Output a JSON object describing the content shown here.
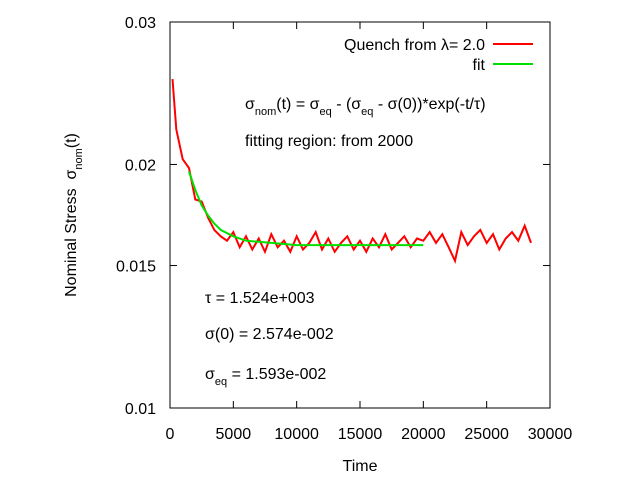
{
  "chart_data": {
    "type": "line",
    "xlabel": "Time",
    "ylabel": [
      {
        "text": "Nominal Stress  σ"
      },
      {
        "text": "nom",
        "sub": true
      },
      {
        "text": "(t)"
      }
    ],
    "xlim": [
      0,
      30000
    ],
    "xticks": [
      0,
      5000,
      10000,
      15000,
      20000,
      25000,
      30000
    ],
    "ylim": [
      0.01,
      0.03
    ],
    "yticks": [
      0.01,
      0.015,
      0.02,
      0.03
    ],
    "ylog": true,
    "legend": "top right",
    "series": [
      {
        "name": "Quench from λ= 2.0",
        "color": "#ff0000",
        "x": [
          200,
          500,
          1000,
          1500,
          2000,
          2500,
          3000,
          3500,
          4000,
          4500,
          5000,
          5500,
          6000,
          6500,
          7000,
          7500,
          8000,
          8500,
          9000,
          9500,
          10000,
          10500,
          11000,
          11500,
          12000,
          12500,
          13000,
          13500,
          14000,
          14500,
          15000,
          15500,
          16000,
          16500,
          17000,
          17500,
          18000,
          18500,
          19000,
          19500,
          20000,
          20500,
          21000,
          21500,
          22000,
          22500,
          23000,
          23500,
          24000,
          24500,
          25000,
          25500,
          26000,
          26500,
          27000,
          27500,
          28000,
          28500
        ],
        "values": [
          0.0255,
          0.0221,
          0.0203,
          0.0198,
          0.0181,
          0.018,
          0.0172,
          0.0166,
          0.0163,
          0.0161,
          0.0165,
          0.0158,
          0.0163,
          0.0157,
          0.0162,
          0.0156,
          0.0164,
          0.0158,
          0.0161,
          0.0156,
          0.0163,
          0.0157,
          0.016,
          0.0165,
          0.0157,
          0.0162,
          0.0156,
          0.016,
          0.0163,
          0.0157,
          0.0161,
          0.0156,
          0.0162,
          0.0158,
          0.0164,
          0.0157,
          0.016,
          0.0163,
          0.0158,
          0.0162,
          0.0161,
          0.0165,
          0.016,
          0.0164,
          0.0158,
          0.0152,
          0.0165,
          0.0159,
          0.0163,
          0.0166,
          0.016,
          0.0164,
          0.0157,
          0.0162,
          0.0165,
          0.0161,
          0.0168,
          0.016
        ]
      },
      {
        "name": "fit",
        "color": "#00e000",
        "x": [
          1500,
          2000,
          2500,
          3000,
          3500,
          4000,
          5000,
          6000,
          8000,
          10000,
          15000,
          20000
        ],
        "values": [
          0.0196,
          0.0186,
          0.0178,
          0.0173,
          0.0169,
          0.0166,
          0.0163,
          0.0161,
          0.016,
          0.0159,
          0.0159,
          0.0159
        ]
      }
    ],
    "annotations": [
      [
        {
          "text": "σ"
        },
        {
          "text": "nom",
          "sub": true
        },
        {
          "text": "(t) = σ"
        },
        {
          "text": "eq",
          "sub": true
        },
        {
          "text": " - (σ"
        },
        {
          "text": "eq",
          "sub": true
        },
        {
          "text": " - σ(0))*exp(-t/τ)"
        }
      ],
      [
        {
          "text": "fitting region: from 2000"
        }
      ],
      [
        {
          "text": "τ = 1.524e+003"
        }
      ],
      [
        {
          "text": "σ(0) = 2.574e-002"
        }
      ],
      [
        {
          "text": "σ"
        },
        {
          "text": "eq",
          "sub": true
        },
        {
          "text": " = 1.593e-002"
        }
      ]
    ]
  }
}
